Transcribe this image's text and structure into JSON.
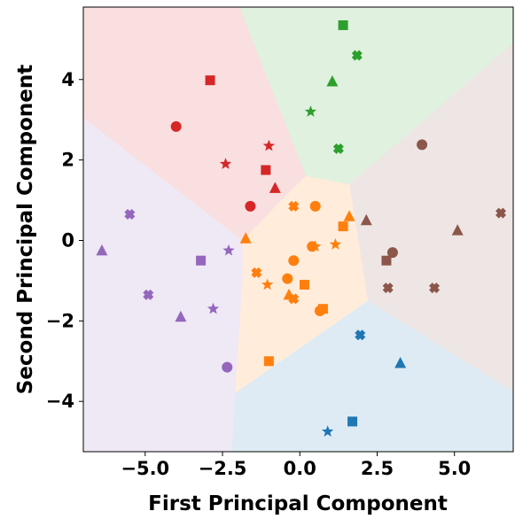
{
  "chart_data": {
    "type": "scatter",
    "title": "",
    "xlabel": "First Principal Component",
    "ylabel": "Second Principal Component",
    "xlim": [
      -7.0,
      6.9
    ],
    "ylim": [
      -5.25,
      5.8
    ],
    "xticks": [
      -5.0,
      -2.5,
      0.0,
      2.5,
      5.0
    ],
    "xtick_labels": [
      "−5.0",
      "−2.5",
      "0.0",
      "2.5",
      "5.0"
    ],
    "yticks": [
      -4,
      -2,
      0,
      2,
      4
    ],
    "ytick_labels": [
      "−4",
      "−2",
      "0",
      "2",
      "4"
    ],
    "grid": false,
    "legend": "none",
    "regions": [
      {
        "color": "#1f77b4",
        "polygon": [
          [
            -2.2,
            -5.25
          ],
          [
            -2.1,
            -3.8
          ],
          [
            2.2,
            -1.5
          ],
          [
            6.9,
            -3.75
          ],
          [
            6.9,
            -5.25
          ]
        ]
      },
      {
        "color": "#ff7f0e",
        "polygon": [
          [
            -2.1,
            -3.8
          ],
          [
            -1.85,
            -0.9
          ],
          [
            -1.85,
            0
          ],
          [
            -0.6,
            1.0
          ],
          [
            0.2,
            1.6
          ],
          [
            1.6,
            1.4
          ],
          [
            2.2,
            -1.5
          ]
        ]
      },
      {
        "color": "#2ca02c",
        "polygon": [
          [
            -1.95,
            5.8
          ],
          [
            6.9,
            5.8
          ],
          [
            6.9,
            4.9
          ],
          [
            1.6,
            1.4
          ],
          [
            0.2,
            1.6
          ]
        ]
      },
      {
        "color": "#d62728",
        "polygon": [
          [
            -7.0,
            5.8
          ],
          [
            -1.95,
            5.8
          ],
          [
            0.2,
            1.6
          ],
          [
            -0.6,
            1.0
          ],
          [
            -1.85,
            0
          ],
          [
            -7.0,
            3.05
          ]
        ]
      },
      {
        "color": "#9467bd",
        "polygon": [
          [
            -7.0,
            3.05
          ],
          [
            -1.85,
            0
          ],
          [
            -1.85,
            -0.9
          ],
          [
            -2.1,
            -3.8
          ],
          [
            -2.2,
            -5.25
          ],
          [
            -7.0,
            -5.25
          ]
        ]
      },
      {
        "color": "#8c564b",
        "polygon": [
          [
            1.6,
            1.4
          ],
          [
            6.9,
            4.9
          ],
          [
            6.9,
            -3.75
          ],
          [
            2.2,
            -1.5
          ]
        ]
      }
    ],
    "series": [
      {
        "color": "#1f77b4",
        "points": [
          {
            "x": 1.95,
            "y": -2.35,
            "marker": "x"
          },
          {
            "x": 3.25,
            "y": -3.05,
            "marker": "triangle"
          },
          {
            "x": 1.7,
            "y": -4.5,
            "marker": "square"
          },
          {
            "x": 0.9,
            "y": -4.75,
            "marker": "star"
          }
        ]
      },
      {
        "color": "#ff7f0e",
        "points": [
          {
            "x": -0.2,
            "y": 0.85,
            "marker": "x"
          },
          {
            "x": 0.5,
            "y": 0.85,
            "marker": "circle"
          },
          {
            "x": 1.6,
            "y": 0.6,
            "marker": "triangle"
          },
          {
            "x": 1.4,
            "y": 0.35,
            "marker": "square"
          },
          {
            "x": -1.75,
            "y": 0.05,
            "marker": "triangle"
          },
          {
            "x": 0.4,
            "y": -0.15,
            "marker": "circle"
          },
          {
            "x": 0.5,
            "y": -0.15,
            "marker": "star"
          },
          {
            "x": 1.15,
            "y": -0.1,
            "marker": "star"
          },
          {
            "x": -0.2,
            "y": -0.5,
            "marker": "circle"
          },
          {
            "x": -1.4,
            "y": -0.8,
            "marker": "x"
          },
          {
            "x": -1.05,
            "y": -1.1,
            "marker": "star"
          },
          {
            "x": -0.4,
            "y": -0.95,
            "marker": "circle"
          },
          {
            "x": 0.15,
            "y": -1.1,
            "marker": "square"
          },
          {
            "x": -0.35,
            "y": -1.35,
            "marker": "triangle"
          },
          {
            "x": -0.2,
            "y": -1.45,
            "marker": "x"
          },
          {
            "x": 0.75,
            "y": -1.7,
            "marker": "square"
          },
          {
            "x": 0.65,
            "y": -1.75,
            "marker": "circle"
          },
          {
            "x": -1.0,
            "y": -3.0,
            "marker": "square"
          }
        ]
      },
      {
        "color": "#2ca02c",
        "points": [
          {
            "x": 1.4,
            "y": 5.35,
            "marker": "square"
          },
          {
            "x": 1.85,
            "y": 4.6,
            "marker": "x"
          },
          {
            "x": 1.05,
            "y": 3.95,
            "marker": "triangle"
          },
          {
            "x": 0.35,
            "y": 3.2,
            "marker": "star"
          },
          {
            "x": 1.25,
            "y": 2.28,
            "marker": "x"
          }
        ]
      },
      {
        "color": "#d62728",
        "points": [
          {
            "x": -2.9,
            "y": 3.98,
            "marker": "square"
          },
          {
            "x": -4.0,
            "y": 2.83,
            "marker": "circle"
          },
          {
            "x": -1.0,
            "y": 2.35,
            "marker": "star"
          },
          {
            "x": -2.4,
            "y": 1.9,
            "marker": "star"
          },
          {
            "x": -1.1,
            "y": 1.75,
            "marker": "square"
          },
          {
            "x": -0.8,
            "y": 1.3,
            "marker": "triangle"
          },
          {
            "x": -1.6,
            "y": 0.85,
            "marker": "circle"
          }
        ]
      },
      {
        "color": "#9467bd",
        "points": [
          {
            "x": -5.5,
            "y": 0.65,
            "marker": "x"
          },
          {
            "x": -6.4,
            "y": -0.25,
            "marker": "triangle"
          },
          {
            "x": -2.3,
            "y": -0.25,
            "marker": "star"
          },
          {
            "x": -3.2,
            "y": -0.5,
            "marker": "square"
          },
          {
            "x": -4.9,
            "y": -1.35,
            "marker": "x"
          },
          {
            "x": -2.8,
            "y": -1.7,
            "marker": "star"
          },
          {
            "x": -3.85,
            "y": -1.9,
            "marker": "triangle"
          },
          {
            "x": -2.35,
            "y": -3.15,
            "marker": "circle"
          }
        ]
      },
      {
        "color": "#8c564b",
        "points": [
          {
            "x": 3.95,
            "y": 2.38,
            "marker": "circle"
          },
          {
            "x": 6.5,
            "y": 0.68,
            "marker": "x"
          },
          {
            "x": 2.15,
            "y": 0.5,
            "marker": "triangle"
          },
          {
            "x": 5.1,
            "y": 0.25,
            "marker": "triangle"
          },
          {
            "x": 3.0,
            "y": -0.3,
            "marker": "circle"
          },
          {
            "x": 2.8,
            "y": -0.5,
            "marker": "square"
          },
          {
            "x": 2.85,
            "y": -1.18,
            "marker": "x"
          },
          {
            "x": 4.35,
            "y": -1.18,
            "marker": "x"
          }
        ]
      }
    ]
  }
}
